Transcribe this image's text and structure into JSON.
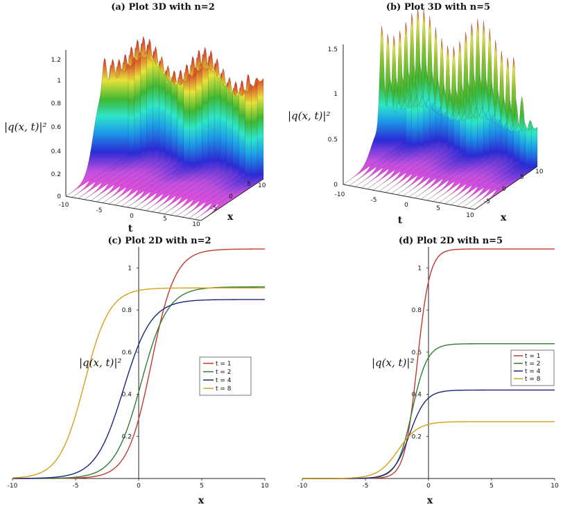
{
  "chart_data": [
    {
      "type": "surface3d",
      "title": "(a) Plot 3D with n=2",
      "zlabel": "|q(x, t)|²",
      "xlabel": "x",
      "tlabel": "t",
      "z_ticks": [
        "0",
        "0.2",
        "0.4",
        "0.6",
        "0.8",
        "1",
        "1.2"
      ],
      "t_ticks": [
        "-10",
        "-5",
        "0",
        "5",
        "10"
      ],
      "x_ticks": [
        "-5",
        "0",
        "5",
        "10"
      ],
      "peaks": [
        1.25,
        1.2,
        1.0
      ],
      "plateau": 0.9
    },
    {
      "type": "surface3d",
      "title": "(b) Plot 3D with n=5",
      "zlabel": "|q(x, t)|²",
      "xlabel": "x",
      "tlabel": "t",
      "z_ticks": [
        "0",
        "0.5",
        "1",
        "1.5"
      ],
      "t_ticks": [
        "-10",
        "-5",
        "0",
        "5",
        "10"
      ],
      "x_ticks": [
        "-5",
        "0",
        "5",
        "10"
      ],
      "peaks": [
        1.62,
        0.95,
        0.55
      ],
      "plateau": 0.4
    },
    {
      "type": "line",
      "title": "(c) Plot 2D with n=2",
      "xlabel": "x",
      "ylabel": "|q(x, t)|²",
      "xlim": [
        -10,
        10
      ],
      "ylim": [
        0,
        1.1
      ],
      "x_ticks": [
        -10,
        -5,
        0,
        5,
        10
      ],
      "y_ticks": [
        0.2,
        0.4,
        0.6,
        0.8,
        1
      ],
      "series": [
        {
          "name": "t = 1",
          "color": "#c0392b",
          "height": 1.09,
          "center": 1.0,
          "width": 0.95
        },
        {
          "name": "t = 2",
          "color": "#2e7d32",
          "height": 0.91,
          "center": 0.2,
          "width": 1.05
        },
        {
          "name": "t = 4",
          "color": "#1a237e",
          "height": 0.85,
          "center": -1.2,
          "width": 1.1
        },
        {
          "name": "t = 8",
          "color": "#d4a017",
          "height": 0.905,
          "center": -4.3,
          "width": 1.0
        }
      ]
    },
    {
      "type": "line",
      "title": "(d) Plot 2D with n=5",
      "xlabel": "x",
      "ylabel": "|q(x, t)|²",
      "xlim": [
        -10,
        10
      ],
      "ylim": [
        0,
        1.1
      ],
      "x_ticks": [
        -10,
        -5,
        0,
        5,
        10
      ],
      "y_ticks": [
        0.2,
        0.4,
        0.6,
        0.8,
        1
      ],
      "series": [
        {
          "name": "t = 1",
          "color": "#c0392b",
          "height": 1.09,
          "center": -0.9,
          "width": 0.5
        },
        {
          "name": "t = 2",
          "color": "#2e7d32",
          "height": 0.64,
          "center": -1.3,
          "width": 0.6
        },
        {
          "name": "t = 4",
          "color": "#1a237e",
          "height": 0.42,
          "center": -1.5,
          "width": 0.65
        },
        {
          "name": "t = 8",
          "color": "#d4a017",
          "height": 0.27,
          "center": -2.4,
          "width": 0.8
        }
      ]
    }
  ]
}
